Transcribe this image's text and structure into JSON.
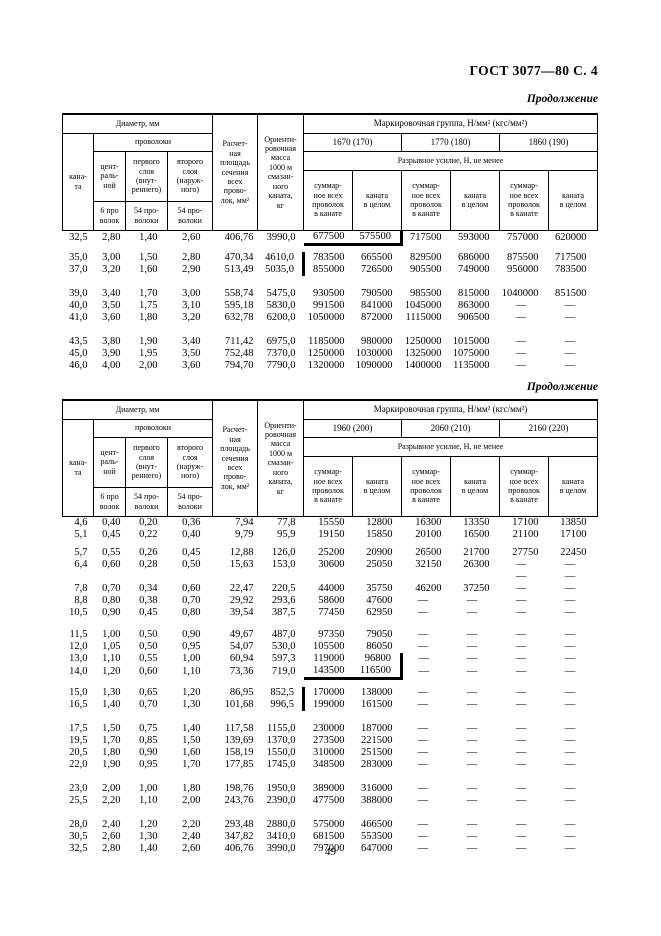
{
  "page": {
    "doc_header": "ГОСТ 3077—80 С. 4",
    "continuation_label": "Продолжение",
    "page_number": "49"
  },
  "table_header": {
    "diameter": "Диаметр, мм",
    "rope": "кана-\nта",
    "wires": "проволоки",
    "central": "цент-\nраль-\nной",
    "first_layer": "первого\nслоя\n(внут-\nреннего)",
    "second_layer": "второго\nслоя\n(наруж-\nного)",
    "wires6": "6 про\nволок",
    "wires54": "54 про-\nволоки",
    "area": "Расчет-\nная\nплощадь\nсечения\nвсех\nпрово-\nлок, мм²",
    "mass": "Ориенти-\nровочная\nмасса\n1000 м\nсмазан-\nного\nканата,\nкг",
    "mark_group": "Маркировочная группа, Н/мм² (кгс/мм²)",
    "break_force": "Разрывное усилие, Н, не менее",
    "sum_wires": "суммар-\nное всех\nпроволок\nв канате",
    "whole_rope": "каната\nв целом"
  },
  "tables": [
    {
      "groups": [
        "1670 (170)",
        "1770 (180)",
        "1860 (190)"
      ],
      "row_groups": [
        {
          "rows": [
            {
              "cells": [
                "32,5",
                "2,80",
                "1,40",
                "2,60",
                "406,76",
                "3990,0",
                "677500",
                "575500",
                "717500",
                "593000",
                "757000",
                "620000"
              ],
              "marks": [
                "right8",
                "bottom78"
              ]
            }
          ]
        },
        {
          "rows": [
            {
              "cells": [
                "35,0",
                "3,00",
                "1,50",
                "2,80",
                "470,34",
                "4610,0",
                "783500",
                "665500",
                "829500",
                "686000",
                "875500",
                "717500"
              ],
              "marks": [
                "left7"
              ]
            },
            {
              "cells": [
                "37,0",
                "3,20",
                "1,60",
                "2,90",
                "513,49",
                "5035,0",
                "855000",
                "726500",
                "905500",
                "749000",
                "956000",
                "783500"
              ],
              "marks": [
                "left7"
              ]
            }
          ]
        },
        {
          "rows": [
            {
              "cells": [
                "39,0",
                "3,40",
                "1,70",
                "3,00",
                "558,74",
                "5475,0",
                "930500",
                "790500",
                "985500",
                "815000",
                "1040000",
                "851500"
              ]
            },
            {
              "cells": [
                "40,0",
                "3,50",
                "1,75",
                "3,10",
                "595,18",
                "5830,0",
                "991500",
                "841000",
                "1045000",
                "863000",
                "—",
                "—"
              ]
            },
            {
              "cells": [
                "41,0",
                "3,60",
                "1,80",
                "3,20",
                "632,78",
                "6200,0",
                "1050000",
                "872000",
                "1115000",
                "906500",
                "—",
                "—"
              ]
            }
          ]
        },
        {
          "rows": [
            {
              "cells": [
                "43,5",
                "3,80",
                "1,90",
                "3,40",
                "711,42",
                "6975,0",
                "1185000",
                "980000",
                "1250000",
                "1015000",
                "—",
                "—"
              ]
            },
            {
              "cells": [
                "45,0",
                "3,90",
                "1,95",
                "3,50",
                "752,48",
                "7370,0",
                "1250000",
                "1030000",
                "1325000",
                "1075000",
                "—",
                "—"
              ]
            },
            {
              "cells": [
                "46,0",
                "4,00",
                "2,00",
                "3,60",
                "794,70",
                "7790,0",
                "1320000",
                "1090000",
                "1400000",
                "1135000",
                "—",
                "—"
              ]
            }
          ]
        }
      ]
    },
    {
      "groups": [
        "1960 (200)",
        "2060 (210)",
        "2160 (220)"
      ],
      "row_groups": [
        {
          "rows": [
            {
              "cells": [
                "4,6",
                "0,40",
                "0,20",
                "0,36",
                "7,94",
                "77,8",
                "15550",
                "12800",
                "16300",
                "13350",
                "17100",
                "13850"
              ]
            },
            {
              "cells": [
                "5,1",
                "0,45",
                "0,22",
                "0,40",
                "9,79",
                "95,9",
                "19150",
                "15850",
                "20100",
                "16500",
                "21100",
                "17100"
              ]
            }
          ]
        },
        {
          "rows": [
            {
              "cells": [
                "5,7",
                "0,55",
                "0,26",
                "0,45",
                "12,88",
                "126,0",
                "25200",
                "20900",
                "26500",
                "21700",
                "27750",
                "22450"
              ]
            },
            {
              "cells": [
                "6,4",
                "0,60",
                "0,28",
                "0,50",
                "15,63",
                "153,0",
                "30600",
                "25050",
                "32150",
                "26300",
                "—",
                "—"
              ]
            },
            {
              "cells": [
                "",
                "",
                "",
                "",
                "",
                "",
                "",
                "",
                "",
                "",
                "—",
                "—"
              ]
            },
            {
              "cells": [
                "7,8",
                "0,70",
                "0,34",
                "0,60",
                "22,47",
                "220,5",
                "44000",
                "35750",
                "46200",
                "37250",
                "—",
                "—"
              ]
            },
            {
              "cells": [
                "8,8",
                "0,80",
                "0,38",
                "0,70",
                "29,92",
                "293,6",
                "58600",
                "47600",
                "—",
                "—",
                "—",
                "—"
              ]
            },
            {
              "cells": [
                "10,5",
                "0,90",
                "0,45",
                "0,80",
                "39,54",
                "387,5",
                "77450",
                "62950",
                "—",
                "—",
                "—",
                "—"
              ]
            }
          ]
        },
        {
          "rows": [
            {
              "cells": [
                "11,5",
                "1,00",
                "0,50",
                "0,90",
                "49,67",
                "487,0",
                "97350",
                "79050",
                "—",
                "—",
                "—",
                "—"
              ]
            },
            {
              "cells": [
                "12,0",
                "1,05",
                "0,50",
                "0,95",
                "54,07",
                "530,0",
                "105500",
                "86050",
                "—",
                "—",
                "—",
                "—"
              ]
            },
            {
              "cells": [
                "13,0",
                "1,10",
                "0,55",
                "1,00",
                "60,94",
                "597,3",
                "119000",
                "96800",
                "—",
                "—",
                "—",
                "—"
              ],
              "marks": [
                "right8"
              ]
            },
            {
              "cells": [
                "14,0",
                "1,20",
                "0,60",
                "1,10",
                "73,36",
                "719,0",
                "143500",
                "116500",
                "—",
                "—",
                "—",
                "—"
              ],
              "marks": [
                "right8",
                "bottom78"
              ]
            }
          ]
        },
        {
          "rows": [
            {
              "cells": [
                "15,0",
                "1,30",
                "0,65",
                "1,20",
                "86,95",
                "852,5",
                "170000",
                "138000",
                "—",
                "—",
                "—",
                "—"
              ],
              "marks": [
                "left7"
              ]
            },
            {
              "cells": [
                "16,5",
                "1,40",
                "0,70",
                "1,30",
                "101,68",
                "996,5",
                "199000",
                "161500",
                "—",
                "—",
                "—",
                "—"
              ],
              "marks": [
                "left7"
              ]
            }
          ]
        },
        {
          "rows": [
            {
              "cells": [
                "17,5",
                "1,50",
                "0,75",
                "1,40",
                "117,58",
                "1155,0",
                "230000",
                "187000",
                "—",
                "—",
                "—",
                "—"
              ]
            },
            {
              "cells": [
                "19,5",
                "1,70",
                "0,85",
                "1,50",
                "139,69",
                "1370,0",
                "273500",
                "221500",
                "—",
                "—",
                "—",
                "—"
              ]
            },
            {
              "cells": [
                "20,5",
                "1,80",
                "0,90",
                "1,60",
                "158,19",
                "1550,0",
                "310000",
                "251500",
                "—",
                "—",
                "—",
                "—"
              ]
            },
            {
              "cells": [
                "22,0",
                "1,90",
                "0,95",
                "1,70",
                "177,85",
                "1745,0",
                "348500",
                "283000",
                "—",
                "—",
                "—",
                "—"
              ]
            }
          ]
        },
        {
          "rows": [
            {
              "cells": [
                "23,0",
                "2,00",
                "1,00",
                "1,80",
                "198,76",
                "1950,0",
                "389000",
                "316000",
                "—",
                "—",
                "—",
                "—"
              ]
            },
            {
              "cells": [
                "25,5",
                "2,20",
                "1,10",
                "2,00",
                "243,76",
                "2390,0",
                "477500",
                "388000",
                "—",
                "—",
                "—",
                "—"
              ]
            }
          ]
        },
        {
          "rows": [
            {
              "cells": [
                "28,0",
                "2,40",
                "1,20",
                "2,20",
                "293,48",
                "2880,0",
                "575000",
                "466500",
                "—",
                "—",
                "—",
                "—"
              ]
            },
            {
              "cells": [
                "30,5",
                "2,60",
                "1,30",
                "2,40",
                "347,82",
                "3410,0",
                "681500",
                "553500",
                "—",
                "—",
                "—",
                "—"
              ]
            },
            {
              "cells": [
                "32,5",
                "2,80",
                "1,40",
                "2,60",
                "406,76",
                "3990,0",
                "797000",
                "647000",
                "—",
                "—",
                "—",
                "—"
              ]
            }
          ]
        }
      ]
    }
  ]
}
